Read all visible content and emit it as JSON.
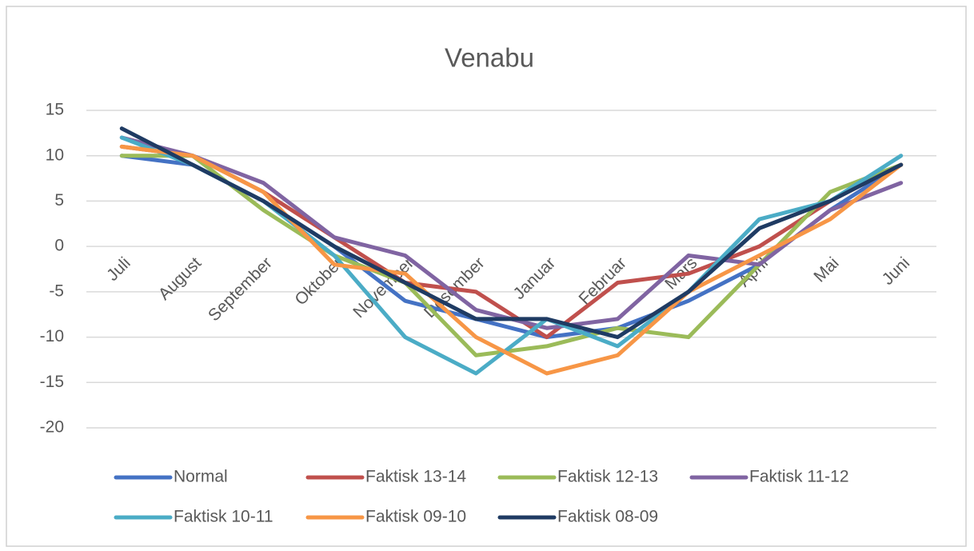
{
  "chart_data": {
    "type": "line",
    "title": "Venabu",
    "categories": [
      "Juli",
      "August",
      "September",
      "Oktober",
      "November",
      "Desember",
      "Januar",
      "Februar",
      "Mars",
      "April",
      "Mai",
      "Juni"
    ],
    "series": [
      {
        "name": "Normal",
        "color": "#4472c4",
        "values": [
          10,
          9,
          5,
          0,
          -6,
          -8,
          -10,
          -9,
          -6,
          -2,
          4,
          9
        ]
      },
      {
        "name": "Faktisk 13-14",
        "color": "#c0504d",
        "values": [
          11,
          10,
          6,
          1,
          -4,
          -5,
          -10,
          -4,
          -3,
          0,
          5,
          9
        ]
      },
      {
        "name": "Faktisk 12-13",
        "color": "#9bbb59",
        "values": [
          10,
          10,
          4,
          -1,
          -4,
          -12,
          -11,
          -9,
          -10,
          -2,
          6,
          9
        ]
      },
      {
        "name": "Faktisk 11-12",
        "color": "#8064a2",
        "values": [
          12,
          10,
          7,
          1,
          -1,
          -7,
          -9,
          -8,
          -1,
          -2,
          4,
          7
        ]
      },
      {
        "name": "Faktisk 10-11",
        "color": "#4bacc6",
        "values": [
          12,
          9,
          5,
          -1,
          -10,
          -14,
          -8,
          -11,
          -5,
          3,
          5,
          10
        ]
      },
      {
        "name": "Faktisk 09-10",
        "color": "#f79646",
        "values": [
          11,
          10,
          6,
          -2,
          -3,
          -10,
          -14,
          -12,
          -5,
          -1,
          3,
          9
        ]
      },
      {
        "name": "Faktisk 08-09",
        "color": "#1f3b63",
        "values": [
          13,
          9,
          5,
          0,
          -4,
          -8,
          -8,
          -10,
          -5,
          2,
          5,
          9
        ]
      }
    ],
    "ylim": [
      -20,
      15
    ],
    "yticks": [
      -20,
      -15,
      -10,
      -5,
      0,
      5,
      10,
      15
    ],
    "grid": true,
    "legend": "bottom"
  }
}
